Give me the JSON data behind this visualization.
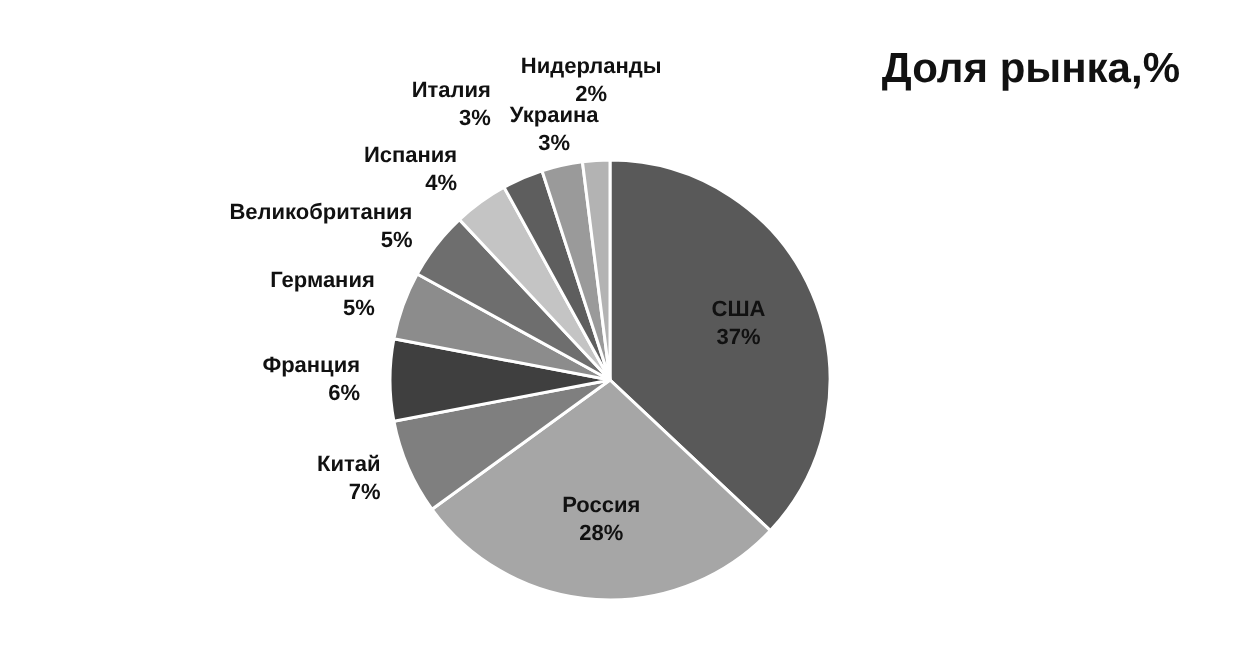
{
  "chart_data": {
    "type": "pie",
    "title": "Доля рынка,%",
    "categories": [
      "США",
      "Россия",
      "Китай",
      "Франция",
      "Германия",
      "Великобритания",
      "Испания",
      "Италия",
      "Украина",
      "Нидерланды"
    ],
    "values": [
      37,
      28,
      7,
      6,
      5,
      5,
      4,
      3,
      3,
      2
    ],
    "value_labels": [
      "37%",
      "28%",
      "7%",
      "6%",
      "5%",
      "5%",
      "4%",
      "3%",
      "3%",
      "2%"
    ],
    "colors": [
      "#595959",
      "#a6a6a6",
      "#7f7f7f",
      "#3f3f3f",
      "#8c8c8c",
      "#6e6e6e",
      "#c4c4c4",
      "#5e5e5e",
      "#9a9a9a",
      "#b3b3b3"
    ]
  }
}
